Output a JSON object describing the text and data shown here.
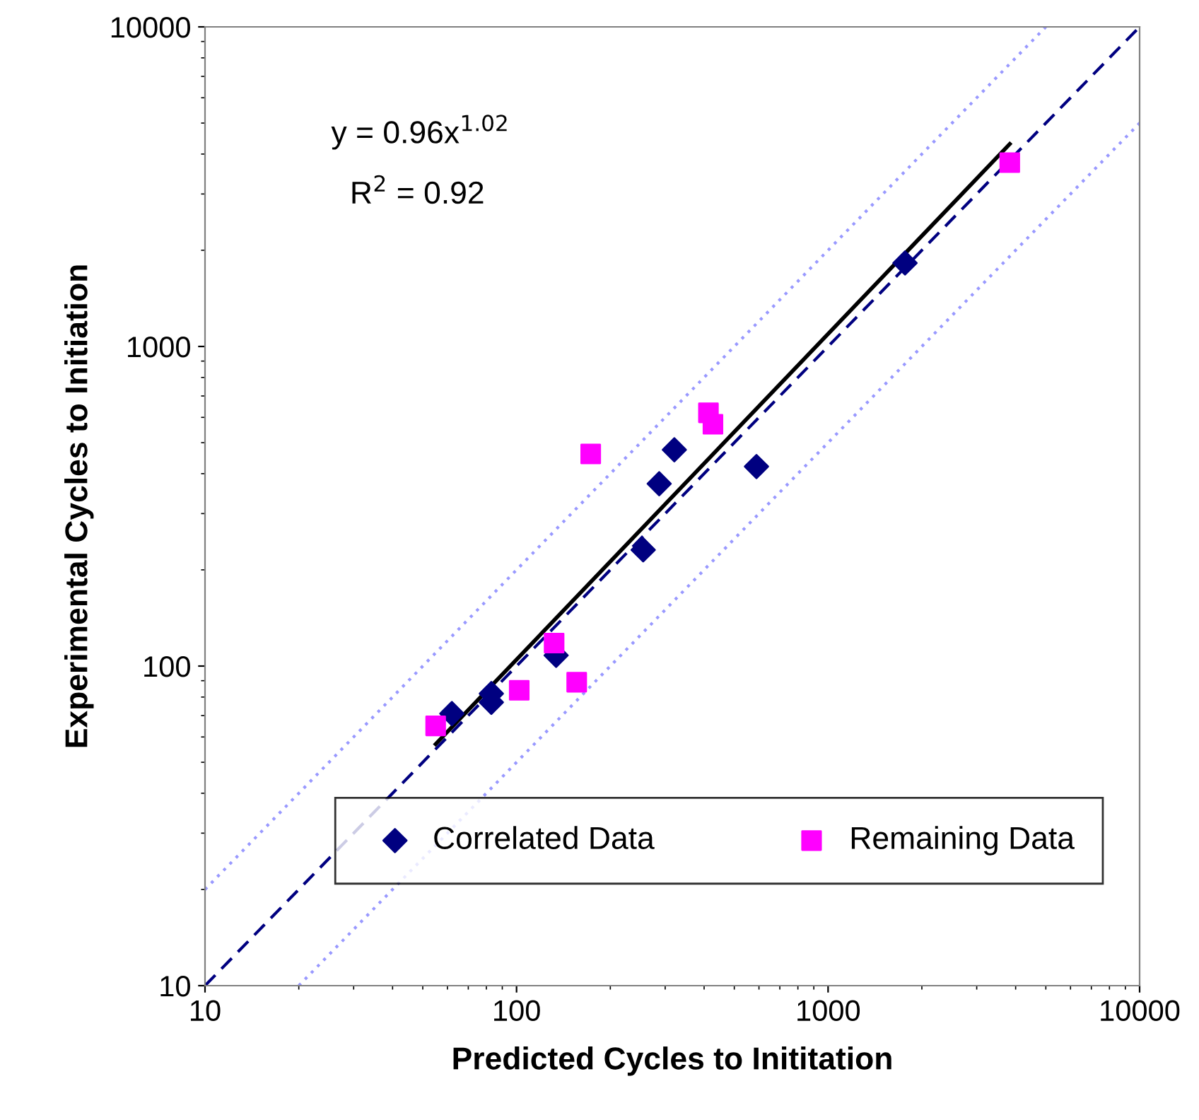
{
  "chart_data": {
    "type": "scatter",
    "xlabel": "Predicted Cycles to Inititation",
    "ylabel": "Experimental Cycles to Initiation",
    "log": "xy",
    "xlim": [
      10,
      10000
    ],
    "ylim": [
      10,
      10000
    ],
    "xticks": [
      10,
      100,
      1000,
      10000
    ],
    "yticks": [
      10,
      100,
      1000,
      10000
    ],
    "grid": false,
    "legend": "bottom",
    "annotations": [
      "y = 0.96x$^{1.02}$",
      "R$^{2}$ = 0.92"
    ],
    "series": [
      {
        "type": "line",
        "color": "#000080",
        "line_style": "dashed",
        "marker": "none",
        "x": [
          10,
          10000
        ],
        "values": [
          10,
          10000
        ]
      },
      {
        "type": "line",
        "color": "#9999ff",
        "line_style": "dotted",
        "marker": "none",
        "x": [
          10,
          5000
        ],
        "values": [
          20,
          10000
        ]
      },
      {
        "type": "line",
        "color": "#9999ff",
        "line_style": "dotted",
        "marker": "none",
        "x": [
          20,
          10000
        ],
        "values": [
          10,
          5000
        ]
      },
      {
        "type": "line",
        "color": "#000000",
        "line_style": "solid",
        "marker": "none",
        "x": [
          55,
          3830
        ],
        "values": [
          57,
          4300
        ]
      },
      {
        "name": "Correlated Data",
        "color": "#000080",
        "marker": "diamond",
        "x": [
          62,
          83,
          83,
          134,
          255,
          287,
          321,
          589,
          1766
        ],
        "values": [
          71,
          82,
          77,
          108,
          231,
          372,
          475,
          421,
          1825
        ]
      },
      {
        "name": "Remaining Data",
        "color": "#ff00ff",
        "marker": "square",
        "x": [
          55,
          102,
          132,
          156,
          173,
          413,
          427,
          3830
        ],
        "values": [
          65,
          84,
          118,
          89,
          461,
          620,
          571,
          3760
        ]
      }
    ]
  }
}
